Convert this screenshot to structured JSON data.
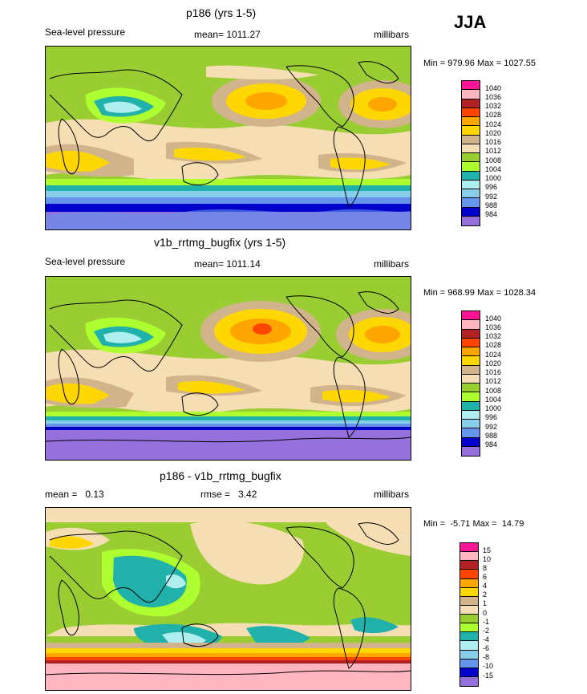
{
  "season": "JJA",
  "panels": [
    {
      "title": "p186 (yrs 1-5)",
      "left_label": "Sea-level pressure",
      "center_label": "mean= 1011.27",
      "right_label": "millibars",
      "minmax": "Min = 979.96 Max = 1027.55",
      "legend_levels": [
        "1040",
        "1036",
        "1032",
        "1028",
        "1024",
        "1020",
        "1016",
        "1012",
        "1008",
        "1004",
        "1000",
        "996",
        "992",
        "988",
        "984"
      ],
      "legend_colors": [
        "#ff1493",
        "#ffb6c1",
        "#b22222",
        "#ff4500",
        "#ffa500",
        "#ffd700",
        "#d2b48c",
        "#f5deb3",
        "#9acd32",
        "#adff2f",
        "#20b2aa",
        "#afeeee",
        "#87ceeb",
        "#6495ed",
        "#0000cd",
        "#9370db"
      ]
    },
    {
      "title": "v1b_rrtmg_bugfix (yrs 1-5)",
      "left_label": "Sea-level pressure",
      "center_label": "mean= 1011.14",
      "right_label": "millibars",
      "minmax": "Min = 968.99 Max = 1028.34",
      "legend_levels": [
        "1040",
        "1036",
        "1032",
        "1028",
        "1024",
        "1020",
        "1016",
        "1012",
        "1008",
        "1004",
        "1000",
        "996",
        "992",
        "988",
        "984"
      ],
      "legend_colors": [
        "#ff1493",
        "#ffb6c1",
        "#b22222",
        "#ff4500",
        "#ffa500",
        "#ffd700",
        "#d2b48c",
        "#f5deb3",
        "#9acd32",
        "#adff2f",
        "#20b2aa",
        "#afeeee",
        "#87ceeb",
        "#6495ed",
        "#0000cd",
        "#9370db"
      ]
    },
    {
      "title": "p186 - v1b_rrtmg_bugfix",
      "left_label": "mean =   0.13",
      "center_label": "rmse =   3.42",
      "right_label": "millibars",
      "minmax": "Min =  -5.71 Max =  14.79",
      "legend_levels": [
        "15",
        "10",
        "8",
        "6",
        "4",
        "2",
        "1",
        "0",
        "-1",
        "-2",
        "-4",
        "-6",
        "-8",
        "-10",
        "-15"
      ],
      "legend_colors": [
        "#ff1493",
        "#ffb6c1",
        "#b22222",
        "#ff4500",
        "#ffa500",
        "#ffd700",
        "#d2b48c",
        "#f5deb3",
        "#9acd32",
        "#adff2f",
        "#20b2aa",
        "#afeeee",
        "#87ceeb",
        "#6495ed",
        "#0000cd",
        "#9370db"
      ]
    }
  ]
}
